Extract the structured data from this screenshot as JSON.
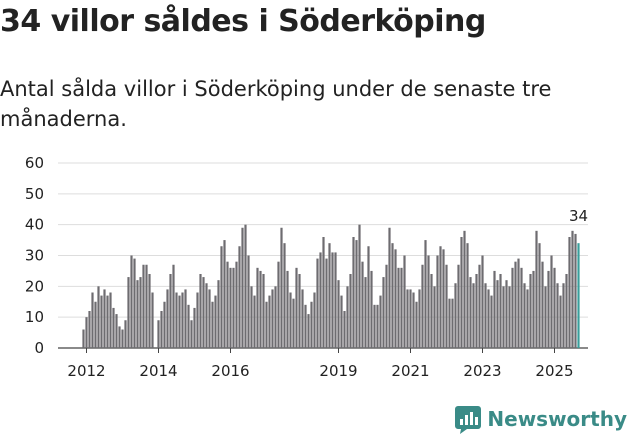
{
  "title": "34 villor såldes i Söderköping",
  "subtitle": "Antal sålda villor i Söderköping under de senaste tre månaderna.",
  "brand": "Newsworthy",
  "colors": {
    "bar": "#6d6c70",
    "highlight": "#3a9e9b",
    "grid": "#dddddd",
    "brand": "#3a8b87"
  },
  "chart_data": {
    "type": "bar",
    "ylim": [
      0,
      60
    ],
    "yticks": [
      0,
      10,
      20,
      30,
      40,
      50,
      60
    ],
    "xticks": [
      {
        "label": "2012",
        "index": 1
      },
      {
        "label": "2014",
        "index": 25
      },
      {
        "label": "2016",
        "index": 49
      },
      {
        "label": "2019",
        "index": 85
      },
      {
        "label": "2021",
        "index": 109
      },
      {
        "label": "2023",
        "index": 133
      },
      {
        "label": "2025",
        "index": 157
      }
    ],
    "values": [
      6,
      10,
      12,
      18,
      15,
      20,
      17,
      19,
      17,
      18,
      13,
      11,
      7,
      6,
      9,
      23,
      30,
      29,
      22,
      23,
      27,
      27,
      24,
      18,
      0,
      9,
      12,
      15,
      19,
      24,
      27,
      18,
      17,
      18,
      19,
      14,
      9,
      13,
      18,
      24,
      23,
      21,
      19,
      15,
      17,
      22,
      33,
      35,
      28,
      26,
      26,
      28,
      33,
      39,
      40,
      30,
      20,
      17,
      26,
      25,
      24,
      15,
      17,
      19,
      20,
      28,
      39,
      34,
      25,
      18,
      16,
      26,
      24,
      19,
      14,
      11,
      15,
      18,
      29,
      31,
      36,
      29,
      34,
      31,
      31,
      22,
      17,
      12,
      20,
      24,
      36,
      35,
      40,
      28,
      23,
      33,
      25,
      14,
      14,
      17,
      23,
      27,
      39,
      34,
      32,
      26,
      26,
      30,
      19,
      19,
      18,
      15,
      19,
      27,
      35,
      30,
      24,
      20,
      30,
      33,
      32,
      27,
      16,
      16,
      21,
      27,
      36,
      38,
      34,
      23,
      21,
      24,
      27,
      30,
      21,
      19,
      17,
      25,
      22,
      24,
      20,
      22,
      20,
      26,
      28,
      29,
      26,
      21,
      19,
      24,
      25,
      38,
      34,
      28,
      20,
      25,
      30,
      26,
      21,
      17,
      21,
      24,
      36,
      38,
      37,
      34
    ],
    "highlight_last": true,
    "last_label": "34"
  }
}
